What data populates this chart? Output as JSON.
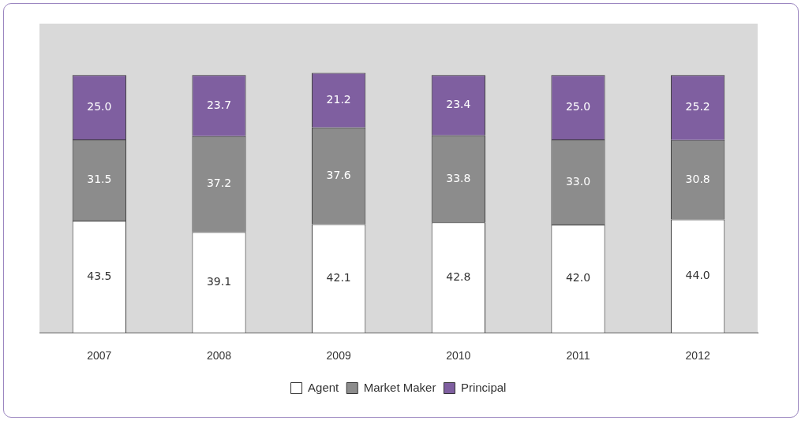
{
  "chart_data": {
    "type": "bar",
    "stacked": true,
    "legend": "bottom",
    "categories": [
      "2007",
      "2008",
      "2009",
      "2010",
      "2011",
      "2012"
    ],
    "series": [
      {
        "name": "Agent",
        "color": "#ffffff",
        "values": [
          43.5,
          39.1,
          42.1,
          42.8,
          42.0,
          44.0
        ],
        "value_labels": [
          "43.5",
          "39.1",
          "42.1",
          "42.8",
          "42.0",
          "44.0"
        ]
      },
      {
        "name": "Market Maker",
        "color": "#8c8c8c",
        "values": [
          31.5,
          37.2,
          37.6,
          33.8,
          33.0,
          30.8
        ],
        "value_labels": [
          "31.5",
          "37.2",
          "37.6",
          "33.8",
          "33.0",
          "30.8"
        ]
      },
      {
        "name": "Principal",
        "color": "#7f5fa0",
        "values": [
          25.0,
          23.7,
          21.2,
          23.4,
          25.0,
          25.2
        ],
        "value_labels": [
          "25.0",
          "23.7",
          "21.2",
          "23.4",
          "25.0",
          "25.2"
        ]
      }
    ]
  }
}
